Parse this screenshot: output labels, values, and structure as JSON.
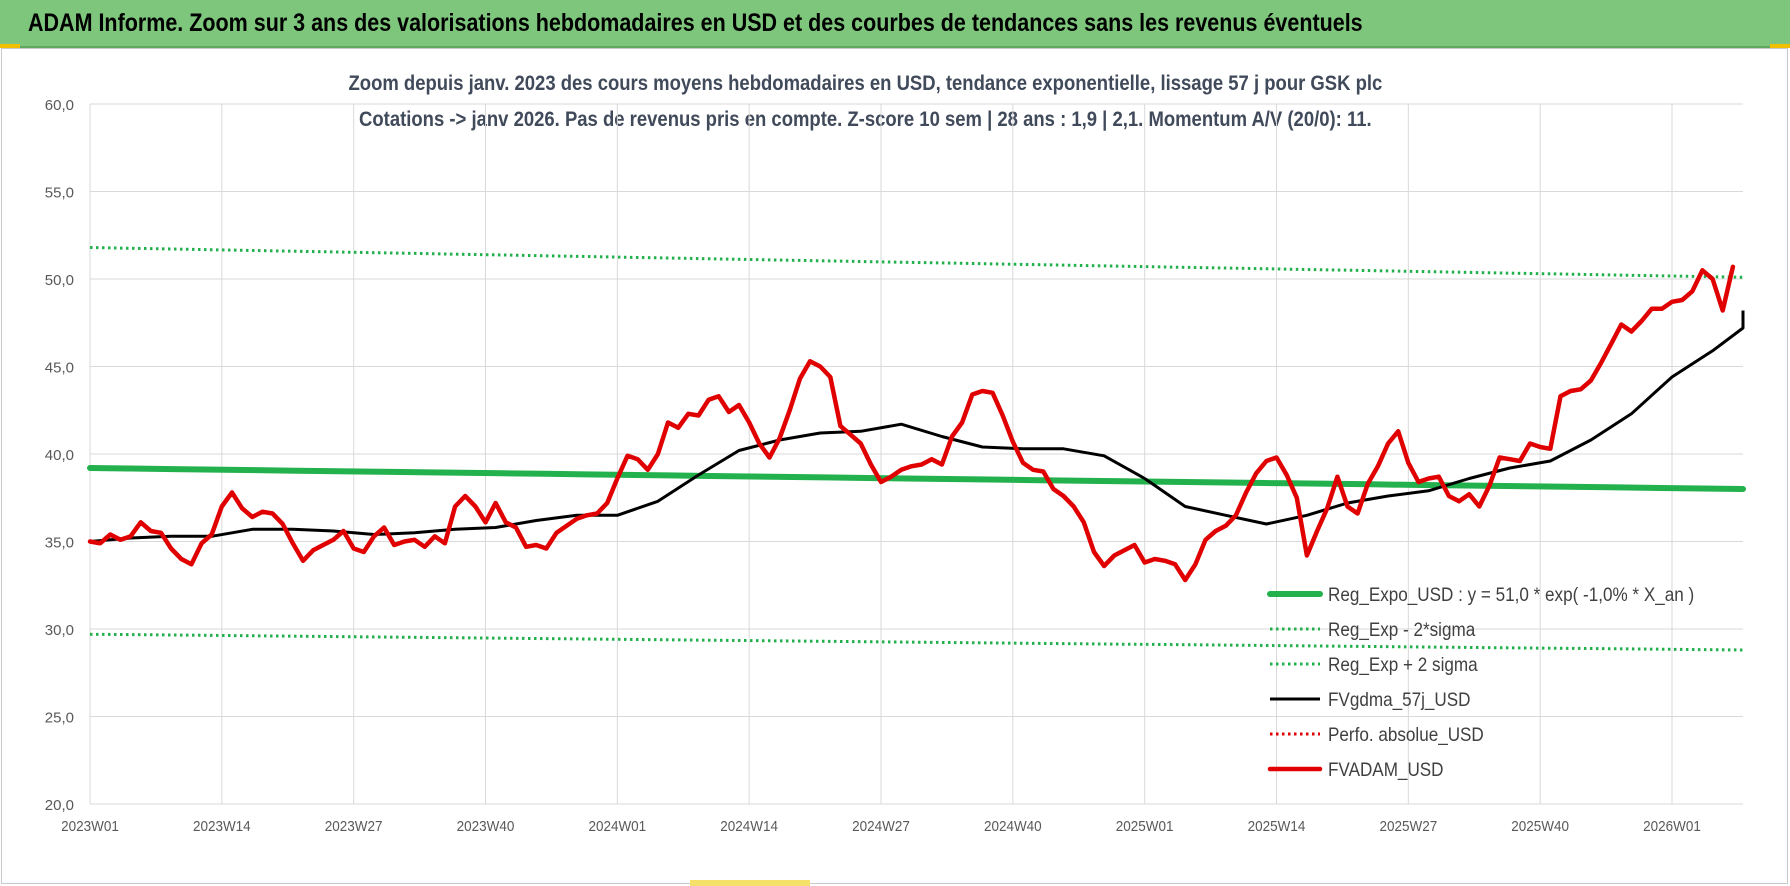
{
  "banner": {
    "title": "ADAM Informe. Zoom sur 3 ans des valorisations hebdomadaires en USD et des courbes de tendances sans les revenus éventuels"
  },
  "chart_data": {
    "type": "line",
    "title_line1": "Zoom depuis janv. 2023 des cours moyens hebdomadaires en USD, tendance exponentielle, lissage 57 j pour GSK plc",
    "title_line2": "Cotations -> janv 2026. Pas de revenus pris en compte. Z-score 10 sem | 28 ans : 1,9 | 2,1. Momentum A/V (20/0): 11.",
    "ylim": [
      20,
      60
    ],
    "y_ticks": [
      "20,0",
      "25,0",
      "30,0",
      "35,0",
      "40,0",
      "45,0",
      "50,0",
      "55,0",
      "60,0"
    ],
    "x_tick_labels": [
      "2023W01",
      "2023W14",
      "2023W27",
      "2023W40",
      "2024W01",
      "2024W14",
      "2024W27",
      "2024W40",
      "2025W01",
      "2025W14",
      "2025W27",
      "2025W40",
      "2026W01"
    ],
    "x_tick_weeks": [
      0,
      13,
      26,
      39,
      52,
      65,
      78,
      91,
      104,
      117,
      130,
      143,
      156
    ],
    "grid": "vertical and horizontal, light grey",
    "legend_position": "lower-right",
    "series": [
      {
        "name": "Reg_Expo_USD : y = 51,0 * exp( -1,0% *  X_an )",
        "color": "#22b14c",
        "style": "thick",
        "x_start": 0,
        "values_endpoints": [
          39.2,
          38.0
        ]
      },
      {
        "name": "Reg_Exp - 2*sigma",
        "color": "#22b14c",
        "style": "dotted",
        "x_start": 0,
        "values_endpoints": [
          29.7,
          28.8
        ]
      },
      {
        "name": "Reg_Exp + 2 sigma",
        "color": "#22b14c",
        "style": "dotted",
        "x_start": 0,
        "values_endpoints": [
          51.8,
          50.1
        ]
      },
      {
        "name": "FVgdma_57j_USD",
        "color": "#000000",
        "style": "solid",
        "x_start": 0,
        "x_step": 4,
        "values": [
          35.0,
          35.2,
          35.3,
          35.3,
          35.7,
          35.7,
          35.6,
          35.4,
          35.5,
          35.7,
          35.8,
          36.2,
          36.5,
          36.5,
          37.3,
          38.8,
          40.2,
          40.8,
          41.2,
          41.3,
          41.7,
          41.0,
          40.4,
          40.3,
          40.3,
          39.9,
          38.6,
          37.0,
          36.5,
          36.0,
          36.5,
          37.2,
          37.6,
          37.9,
          38.6,
          39.2,
          39.6,
          40.8,
          42.3,
          44.4,
          45.9,
          47.2,
          48.2
        ]
      },
      {
        "name": "Perfo. absolue_USD",
        "color": "#e00000",
        "style": "dotted",
        "x_start": 0,
        "values": []
      },
      {
        "name": "FVADAM_USD",
        "color": "#e00000",
        "style": "thick",
        "x_start": 0,
        "x_step": 1,
        "values": [
          35.0,
          34.9,
          35.4,
          35.1,
          35.3,
          36.1,
          35.6,
          35.5,
          34.6,
          34.0,
          33.7,
          34.9,
          35.4,
          37.0,
          37.8,
          36.9,
          36.4,
          36.7,
          36.6,
          36.0,
          34.9,
          33.9,
          34.5,
          34.8,
          35.1,
          35.6,
          34.6,
          34.4,
          35.3,
          35.8,
          34.8,
          35.0,
          35.1,
          34.7,
          35.3,
          34.9,
          37.0,
          37.6,
          37.0,
          36.1,
          37.2,
          36.1,
          35.8,
          34.7,
          34.8,
          34.6,
          35.5,
          35.9,
          36.3,
          36.5,
          36.6,
          37.2,
          38.6,
          39.9,
          39.7,
          39.1,
          40.0,
          41.8,
          41.5,
          42.3,
          42.2,
          43.1,
          43.3,
          42.4,
          42.8,
          41.8,
          40.6,
          39.8,
          40.9,
          42.5,
          44.3,
          45.3,
          45.0,
          44.4,
          41.6,
          41.1,
          40.6,
          39.4,
          38.4,
          38.7,
          39.1,
          39.3,
          39.4,
          39.7,
          39.4,
          41.0,
          41.8,
          43.4,
          43.6,
          43.5,
          42.2,
          40.7,
          39.5,
          39.1,
          39.0,
          38.0,
          37.6,
          37.0,
          36.1,
          34.4,
          33.6,
          34.2,
          34.5,
          34.8,
          33.8,
          34.0,
          33.9,
          33.7,
          32.8,
          33.7,
          35.1,
          35.6,
          35.9,
          36.5,
          37.8,
          38.9,
          39.6,
          39.8,
          38.8,
          37.5,
          34.2,
          35.6,
          36.9,
          38.7,
          37.0,
          36.6,
          38.3,
          39.3,
          40.6,
          41.3,
          39.5,
          38.4,
          38.6,
          38.7,
          37.6,
          37.3,
          37.7,
          37.0,
          38.2,
          39.8,
          39.7,
          39.6,
          40.6,
          40.4,
          40.3,
          43.3,
          43.6,
          43.7,
          44.2,
          45.2,
          46.3,
          47.4,
          47.0,
          47.6,
          48.3,
          48.3,
          48.7,
          48.8,
          49.3,
          50.5,
          50.0,
          48.2,
          50.7
        ]
      }
    ]
  }
}
